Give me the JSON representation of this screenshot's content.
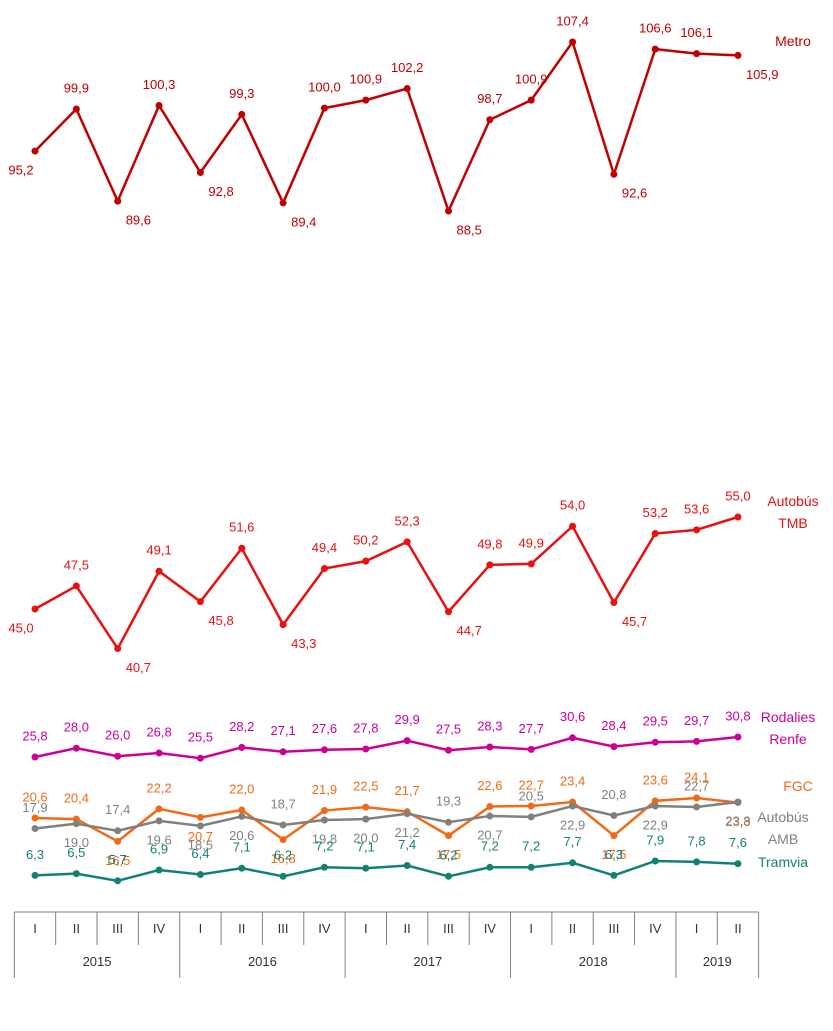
{
  "chart_data": {
    "type": "line",
    "categories": [
      "I",
      "II",
      "III",
      "IV",
      "I",
      "II",
      "III",
      "IV",
      "I",
      "II",
      "III",
      "IV",
      "I",
      "II",
      "III",
      "IV",
      "I",
      "II"
    ],
    "years": [
      "2015",
      "2016",
      "2017",
      "2018",
      "2019"
    ],
    "series": [
      {
        "name": "Metro",
        "color": "#c00000",
        "values": [
          95.2,
          99.9,
          89.6,
          100.3,
          92.8,
          99.3,
          89.4,
          100.0,
          100.9,
          102.2,
          88.5,
          98.7,
          100.9,
          107.4,
          92.6,
          106.6,
          106.1,
          105.9
        ],
        "value_labels": [
          "95,2",
          "99,9",
          "89,6",
          "100,3",
          "92,8",
          "99,3",
          "89,4",
          "100,0",
          "100,9",
          "102,2",
          "88,5",
          "98,7",
          "100,9",
          "107,4",
          "92,6",
          "106,6",
          "106,1",
          "105,9"
        ]
      },
      {
        "name": "Autobús TMB",
        "color": "#e81010",
        "values": [
          45.0,
          47.5,
          40.7,
          49.1,
          45.8,
          51.6,
          43.3,
          49.4,
          50.2,
          52.3,
          44.7,
          49.8,
          49.9,
          54.0,
          45.7,
          53.2,
          53.6,
          55.0
        ],
        "value_labels": [
          "45,0",
          "47,5",
          "40,7",
          "49,1",
          "45,8",
          "51,6",
          "43,3",
          "49,4",
          "50,2",
          "52,3",
          "44,7",
          "49,8",
          "49,9",
          "54,0",
          "45,7",
          "53,2",
          "53,6",
          "55,0"
        ]
      },
      {
        "name": "Rodalies Renfe",
        "color": "#cc0099",
        "values": [
          25.8,
          28.0,
          26.0,
          26.8,
          25.5,
          28.2,
          27.1,
          27.6,
          27.8,
          29.9,
          27.5,
          28.3,
          27.7,
          30.6,
          28.4,
          29.5,
          29.7,
          30.8
        ],
        "value_labels": [
          "25,8",
          "28,0",
          "26,0",
          "26,8",
          "25,5",
          "28,2",
          "27,1",
          "27,6",
          "27,8",
          "29,9",
          "27,5",
          "28,3",
          "27,7",
          "30,6",
          "28,4",
          "29,5",
          "29,7",
          "30,8"
        ]
      },
      {
        "name": "FGC",
        "color": "#f06a18",
        "values": [
          20.6,
          20.4,
          16.5,
          22.2,
          20.7,
          22.0,
          16.8,
          21.9,
          22.5,
          21.7,
          17.5,
          22.6,
          22.7,
          23.4,
          17.5,
          23.6,
          24.1,
          23.3
        ],
        "value_labels": [
          "20,6",
          "20,4",
          "16,5",
          "22,2",
          "20,7",
          "22,0",
          "16,8",
          "21,9",
          "22,5",
          "21,7",
          "17,5",
          "22,6",
          "22,7",
          "23,4",
          "17,5",
          "23,6",
          "24,1",
          "23,3"
        ]
      },
      {
        "name": "Autobús AMB",
        "color": "#808080",
        "values": [
          17.9,
          19.0,
          17.4,
          19.6,
          18.5,
          20.6,
          18.7,
          19.8,
          20.0,
          21.2,
          19.3,
          20.7,
          20.5,
          22.9,
          20.8,
          22.9,
          22.7,
          23.8
        ],
        "value_labels": [
          "17,9",
          "19,0",
          "17,4",
          "19,6",
          "18,5",
          "20,6",
          "18,7",
          "19,8",
          "20,0",
          "21,2",
          "19,3",
          "20,7",
          "20,5",
          "22,9",
          "20,8",
          "22,9",
          "22,7",
          "23,8"
        ]
      },
      {
        "name": "Tramvia",
        "color": "#138078",
        "values": [
          6.3,
          6.5,
          5.7,
          6.9,
          6.4,
          7.1,
          6.2,
          7.2,
          7.1,
          7.4,
          6.2,
          7.2,
          7.2,
          7.7,
          6.3,
          7.9,
          7.8,
          7.6
        ],
        "value_labels": [
          "6,3",
          "6,5",
          "5,7",
          "6,9",
          "6,4",
          "7,1",
          "6,2",
          "7,2",
          "7,1",
          "7,4",
          "6,2",
          "7,2",
          "7,2",
          "7,7",
          "6,3",
          "7,9",
          "7,8",
          "7,6"
        ]
      }
    ]
  }
}
